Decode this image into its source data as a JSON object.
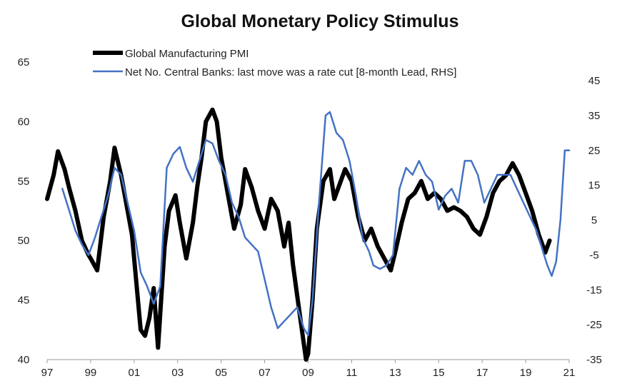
{
  "chart_data": {
    "type": "line",
    "title": "Global Monetary Policy Stimulus",
    "x_ticks": [
      "97",
      "99",
      "01",
      "03",
      "05",
      "07",
      "09",
      "11",
      "13",
      "15",
      "17",
      "19",
      "21"
    ],
    "x_range": [
      1997,
      2021
    ],
    "y_left": {
      "range": [
        40,
        65
      ],
      "ticks": [
        "40",
        "45",
        "50",
        "55",
        "60",
        "65"
      ]
    },
    "y_right": {
      "range": [
        -35,
        45
      ],
      "ticks": [
        "-35",
        "-25",
        "-15",
        "-5",
        "5",
        "15",
        "25",
        "35",
        "45"
      ]
    },
    "series": [
      {
        "name": "Global Manufacturing PMI",
        "axis": "left",
        "color": "#000000",
        "x": [
          1997.0,
          1997.3,
          1997.5,
          1997.8,
          1998.0,
          1998.3,
          1998.6,
          1998.9,
          1999.0,
          1999.3,
          1999.6,
          1999.9,
          2000.1,
          2000.4,
          2000.7,
          2000.9,
          2001.1,
          2001.3,
          2001.5,
          2001.7,
          2001.9,
          2002.1,
          2002.4,
          2002.6,
          2002.9,
          2003.1,
          2003.4,
          2003.7,
          2003.9,
          2004.1,
          2004.3,
          2004.6,
          2004.8,
          2005.0,
          2005.3,
          2005.6,
          2005.9,
          2006.1,
          2006.4,
          2006.7,
          2007.0,
          2007.3,
          2007.6,
          2007.9,
          2008.1,
          2008.3,
          2008.6,
          2008.9,
          2009.0,
          2009.2,
          2009.4,
          2009.7,
          2010.0,
          2010.2,
          2010.5,
          2010.7,
          2011.0,
          2011.3,
          2011.6,
          2011.9,
          2012.2,
          2012.5,
          2012.8,
          2013.0,
          2013.3,
          2013.6,
          2013.9,
          2014.2,
          2014.5,
          2014.8,
          2015.1,
          2015.4,
          2015.7,
          2016.0,
          2016.3,
          2016.6,
          2016.9,
          2017.2,
          2017.5,
          2017.8,
          2018.1,
          2018.4,
          2018.7,
          2019.0,
          2019.3,
          2019.6,
          2019.9,
          2020.1
        ],
        "values": [
          53.5,
          55.5,
          57.5,
          56.0,
          54.5,
          52.5,
          50.0,
          48.8,
          48.5,
          47.5,
          52.0,
          55.0,
          57.8,
          55.5,
          52.5,
          50.5,
          46.5,
          42.5,
          42.0,
          43.5,
          46.0,
          41.0,
          49.5,
          52.5,
          53.8,
          51.5,
          48.5,
          51.5,
          54.5,
          57.0,
          60.0,
          61.0,
          60.0,
          57.0,
          54.0,
          51.0,
          53.0,
          56.0,
          54.5,
          52.5,
          51.0,
          53.5,
          52.5,
          49.5,
          51.5,
          48.0,
          44.0,
          40.0,
          40.5,
          45.0,
          51.0,
          55.0,
          56.0,
          53.5,
          55.0,
          56.0,
          55.0,
          52.0,
          50.0,
          51.0,
          49.5,
          48.5,
          47.5,
          49.0,
          51.5,
          53.5,
          54.0,
          55.0,
          53.5,
          54.0,
          53.5,
          52.5,
          52.8,
          52.5,
          52.0,
          51.0,
          50.5,
          52.0,
          54.0,
          55.0,
          55.5,
          56.5,
          55.5,
          54.0,
          52.5,
          50.5,
          49.0,
          50.0
        ],
        "points_y_unit": "PMI"
      },
      {
        "name": "Net No. Central Banks: last move was a rate cut  [8-month Lead, RHS]",
        "axis": "right",
        "color": "#4472C4",
        "x": [
          1997.7,
          1998.0,
          1998.3,
          1998.6,
          1998.9,
          1999.2,
          1999.5,
          1999.8,
          2000.1,
          2000.4,
          2000.7,
          2001.0,
          2001.3,
          2001.6,
          2001.9,
          2002.2,
          2002.5,
          2002.8,
          2003.1,
          2003.4,
          2003.7,
          2004.0,
          2004.3,
          2004.6,
          2004.9,
          2005.2,
          2005.5,
          2005.8,
          2006.1,
          2006.4,
          2006.7,
          2007.0,
          2007.3,
          2007.6,
          2007.9,
          2008.2,
          2008.5,
          2008.8,
          2009.0,
          2009.2,
          2009.5,
          2009.8,
          2010.0,
          2010.3,
          2010.6,
          2010.9,
          2011.2,
          2011.5,
          2011.8,
          2012.0,
          2012.3,
          2012.6,
          2012.9,
          2013.2,
          2013.5,
          2013.8,
          2014.1,
          2014.4,
          2014.7,
          2015.0,
          2015.3,
          2015.6,
          2015.9,
          2016.2,
          2016.5,
          2016.8,
          2017.1,
          2017.4,
          2017.7,
          2018.0,
          2018.3,
          2018.6,
          2018.9,
          2019.2,
          2019.5,
          2019.8,
          2020.0,
          2020.2,
          2020.4,
          2020.6,
          2020.8,
          2021.0
        ],
        "values": [
          14,
          8,
          2,
          -2,
          -5,
          0,
          6,
          12,
          20,
          18,
          10,
          2,
          -10,
          -14,
          -19,
          -14,
          20,
          24,
          26,
          20,
          16,
          22,
          28,
          27,
          22,
          18,
          10,
          6,
          0,
          -2,
          -4,
          -12,
          -20,
          -26,
          -24,
          -22,
          -20,
          -26,
          -28,
          -18,
          10,
          35,
          36,
          30,
          28,
          22,
          12,
          0,
          -4,
          -8,
          -9,
          -8,
          -5,
          14,
          20,
          18,
          22,
          18,
          16,
          8,
          12,
          14,
          10,
          22,
          22,
          18,
          10,
          14,
          18,
          18,
          18,
          14,
          10,
          6,
          2,
          -4,
          -8,
          -11,
          -7,
          5,
          25,
          25
        ],
        "points_y_unit": "count"
      }
    ],
    "legend_position": "top-center",
    "grid": false
  }
}
